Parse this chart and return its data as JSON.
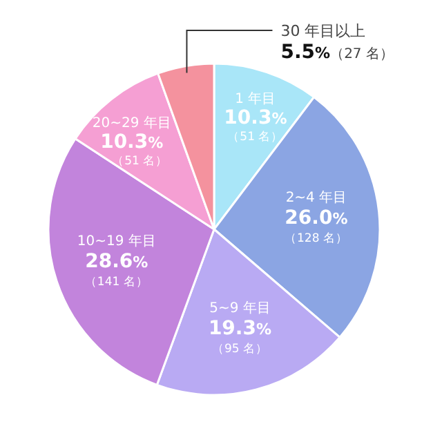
{
  "chart_data": {
    "type": "pie",
    "categories": [
      "1 年目",
      "2~4 年目",
      "5~9 年目",
      "10~19 年目",
      "20~29 年目",
      "30 年目以上"
    ],
    "values": [
      10.3,
      26.0,
      19.3,
      28.6,
      10.3,
      5.5
    ],
    "colors": [
      "#a9e6f8",
      "#8ba5e3",
      "#b9aaf3",
      "#c284dc",
      "#f59fd3",
      "#f4929e"
    ],
    "value_labels": [
      "10.3%",
      "26.0%",
      "19.3%",
      "28.6%",
      "10.3%",
      "5.5%"
    ],
    "annotations": [
      "（51 名）",
      "（128 名）",
      "（95 名）",
      "（141 名）",
      "（51 名）",
      "（27 名）"
    ]
  }
}
